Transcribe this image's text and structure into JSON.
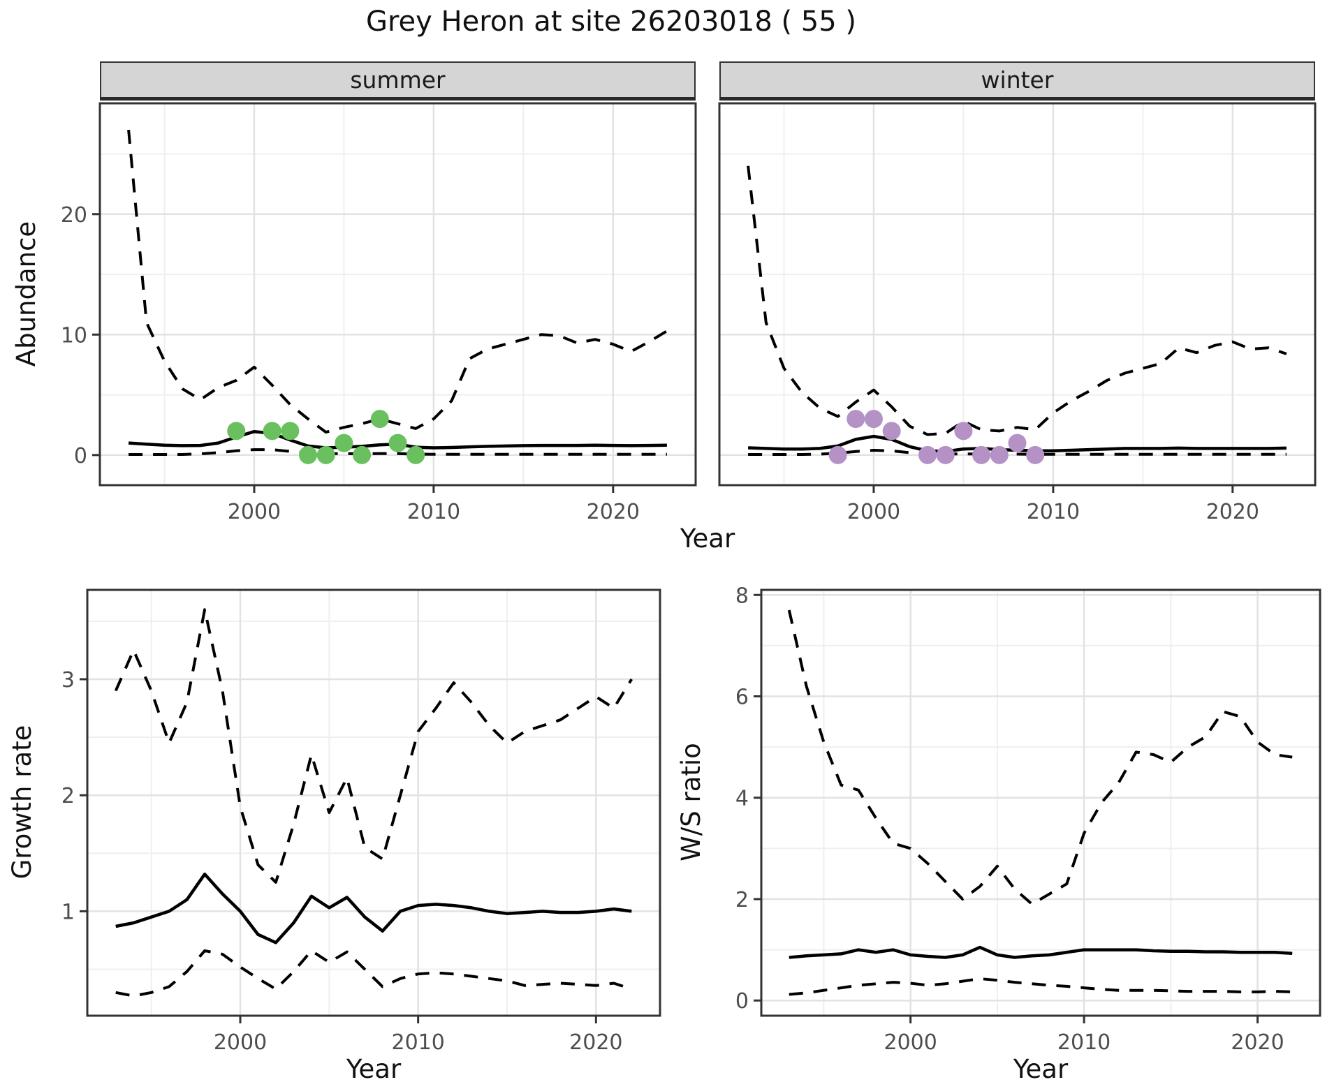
{
  "title": "Grey Heron at site 26203018 ( 55 )",
  "facets": {
    "summer": "summer",
    "winter": "winter"
  },
  "axis_labels": {
    "abundance": "Abundance",
    "year_top": "Year",
    "growth": "Growth rate",
    "ws": "W/S ratio",
    "year_growth": "Year",
    "year_ws": "Year"
  },
  "colors": {
    "summer_points": "#6abf5f",
    "winter_points": "#b592c6",
    "line": "#000000",
    "grid_major": "#e2e2e2",
    "grid_minor": "#efefef",
    "panel_border": "#333333",
    "tick_text": "#4d4d4d"
  },
  "chart_data": [
    {
      "name": "summer-abundance",
      "type": "line",
      "facet": "summer",
      "title": "Grey Heron at site 26203018 ( 55 )",
      "xlabel": "Year",
      "ylabel": "Abundance",
      "xlim": [
        1991.4,
        2024.6
      ],
      "ylim": [
        -2.5,
        29.2
      ],
      "xticks": [
        2000,
        2010,
        2020
      ],
      "xminor": [
        1995,
        2005,
        2015
      ],
      "yticks": [
        0,
        10,
        20
      ],
      "yminor": [
        5,
        15,
        25
      ],
      "x": [
        1993,
        1994,
        1995,
        1996,
        1997,
        1998,
        1999,
        2000,
        2001,
        2002,
        2003,
        2004,
        2005,
        2006,
        2007,
        2008,
        2009,
        2010,
        2011,
        2012,
        2013,
        2014,
        2015,
        2016,
        2017,
        2018,
        2019,
        2020,
        2021,
        2022,
        2023
      ],
      "series": [
        {
          "name": "upper_ci",
          "style": "dashed",
          "values": [
            27.0,
            11.0,
            7.8,
            5.5,
            4.6,
            5.6,
            6.2,
            7.3,
            5.8,
            4.2,
            3.0,
            1.9,
            2.3,
            2.6,
            3.0,
            2.6,
            2.2,
            3.0,
            4.5,
            8.0,
            8.8,
            9.2,
            9.6,
            10.0,
            9.9,
            9.3,
            9.6,
            9.2,
            8.6,
            9.4,
            10.3
          ]
        },
        {
          "name": "median",
          "style": "solid",
          "values": [
            1.0,
            0.9,
            0.82,
            0.78,
            0.8,
            1.0,
            1.5,
            1.95,
            1.8,
            1.25,
            0.75,
            0.6,
            0.65,
            0.72,
            0.85,
            0.9,
            0.65,
            0.6,
            0.63,
            0.68,
            0.72,
            0.75,
            0.78,
            0.8,
            0.8,
            0.8,
            0.82,
            0.8,
            0.78,
            0.8,
            0.82
          ]
        },
        {
          "name": "lower_ci",
          "style": "dashed",
          "values": [
            0.05,
            0.05,
            0.05,
            0.05,
            0.1,
            0.2,
            0.35,
            0.45,
            0.45,
            0.3,
            0.15,
            0.1,
            0.12,
            0.1,
            0.12,
            0.12,
            0.08,
            0.06,
            0.06,
            0.06,
            0.06,
            0.06,
            0.06,
            0.06,
            0.06,
            0.06,
            0.06,
            0.06,
            0.06,
            0.06,
            0.06
          ]
        }
      ],
      "points": {
        "name": "observed_counts",
        "color": "#6abf5f",
        "data": [
          [
            1999,
            2
          ],
          [
            2001,
            2
          ],
          [
            2002,
            2
          ],
          [
            2003,
            0
          ],
          [
            2004,
            0
          ],
          [
            2005,
            1
          ],
          [
            2006,
            0
          ],
          [
            2007,
            3
          ],
          [
            2008,
            1
          ],
          [
            2009,
            0
          ]
        ]
      }
    },
    {
      "name": "winter-abundance",
      "type": "line",
      "facet": "winter",
      "xlabel": "Year",
      "ylabel": "Abundance",
      "xlim": [
        1991.4,
        2024.6
      ],
      "ylim": [
        -2.5,
        29.2
      ],
      "xticks": [
        2000,
        2010,
        2020
      ],
      "xminor": [
        1995,
        2005,
        2015
      ],
      "yticks": [
        0,
        10,
        20
      ],
      "yminor": [
        5,
        15,
        25
      ],
      "x": [
        1993,
        1994,
        1995,
        1996,
        1997,
        1998,
        1999,
        2000,
        2001,
        2002,
        2003,
        2004,
        2005,
        2006,
        2007,
        2008,
        2009,
        2010,
        2011,
        2012,
        2013,
        2014,
        2015,
        2016,
        2017,
        2018,
        2019,
        2020,
        2021,
        2022,
        2023
      ],
      "series": [
        {
          "name": "upper_ci",
          "style": "dashed",
          "values": [
            24.0,
            11.0,
            7.2,
            5.2,
            3.9,
            3.2,
            4.4,
            5.4,
            4.0,
            2.4,
            1.7,
            1.8,
            2.8,
            2.1,
            2.0,
            2.3,
            2.1,
            3.5,
            4.5,
            5.3,
            6.2,
            6.8,
            7.2,
            7.6,
            8.9,
            8.5,
            9.1,
            9.4,
            8.8,
            8.9,
            8.4
          ]
        },
        {
          "name": "median",
          "style": "solid",
          "values": [
            0.6,
            0.55,
            0.5,
            0.5,
            0.55,
            0.75,
            1.3,
            1.55,
            1.3,
            0.7,
            0.35,
            0.3,
            0.5,
            0.55,
            0.45,
            0.4,
            0.35,
            0.35,
            0.4,
            0.45,
            0.5,
            0.55,
            0.55,
            0.55,
            0.58,
            0.55,
            0.55,
            0.55,
            0.55,
            0.55,
            0.58
          ]
        },
        {
          "name": "lower_ci",
          "style": "dashed",
          "values": [
            0.05,
            0.05,
            0.05,
            0.05,
            0.08,
            0.15,
            0.3,
            0.4,
            0.35,
            0.2,
            0.1,
            0.08,
            0.1,
            0.08,
            0.08,
            0.08,
            0.06,
            0.06,
            0.06,
            0.06,
            0.06,
            0.06,
            0.06,
            0.06,
            0.06,
            0.06,
            0.06,
            0.06,
            0.06,
            0.06,
            0.06
          ]
        }
      ],
      "points": {
        "name": "observed_counts",
        "color": "#b592c6",
        "data": [
          [
            1998,
            0
          ],
          [
            1999,
            3
          ],
          [
            2000,
            3
          ],
          [
            2001,
            2
          ],
          [
            2003,
            0
          ],
          [
            2004,
            0
          ],
          [
            2005,
            2
          ],
          [
            2006,
            0
          ],
          [
            2007,
            0
          ],
          [
            2008,
            1
          ],
          [
            2009,
            0
          ]
        ]
      }
    },
    {
      "name": "growth-rate",
      "type": "line",
      "xlabel": "Year",
      "ylabel": "Growth rate",
      "xlim": [
        1991.4,
        2023.6
      ],
      "ylim": [
        0.1,
        3.77
      ],
      "xticks": [
        2000,
        2010,
        2020
      ],
      "xminor": [
        1995,
        2005,
        2015
      ],
      "yticks": [
        1,
        2,
        3
      ],
      "yminor": [
        0.5,
        1.5,
        2.5,
        3.5
      ],
      "x": [
        1993,
        1994,
        1995,
        1996,
        1997,
        1998,
        1999,
        2000,
        2001,
        2002,
        2003,
        2004,
        2005,
        2006,
        2007,
        2008,
        2009,
        2010,
        2011,
        2012,
        2013,
        2014,
        2015,
        2016,
        2017,
        2018,
        2019,
        2020,
        2021,
        2022
      ],
      "series": [
        {
          "name": "upper_ci",
          "style": "dashed",
          "values": [
            2.9,
            3.25,
            2.9,
            2.45,
            2.8,
            3.6,
            2.9,
            1.9,
            1.4,
            1.25,
            1.75,
            2.35,
            1.85,
            2.15,
            1.55,
            1.45,
            2.0,
            2.55,
            2.75,
            2.97,
            2.8,
            2.6,
            2.45,
            2.55,
            2.6,
            2.65,
            2.75,
            2.85,
            2.75,
            3.0
          ]
        },
        {
          "name": "median",
          "style": "solid",
          "values": [
            0.87,
            0.9,
            0.95,
            1.0,
            1.1,
            1.32,
            1.15,
            1.0,
            0.8,
            0.73,
            0.9,
            1.13,
            1.03,
            1.12,
            0.95,
            0.83,
            1.0,
            1.05,
            1.06,
            1.05,
            1.03,
            1.0,
            0.98,
            0.99,
            1.0,
            0.99,
            0.99,
            1.0,
            1.02,
            1.0
          ]
        },
        {
          "name": "lower_ci",
          "style": "dashed",
          "values": [
            0.3,
            0.27,
            0.3,
            0.35,
            0.48,
            0.66,
            0.63,
            0.52,
            0.42,
            0.33,
            0.48,
            0.66,
            0.56,
            0.65,
            0.5,
            0.35,
            0.42,
            0.46,
            0.47,
            0.46,
            0.44,
            0.42,
            0.4,
            0.36,
            0.37,
            0.38,
            0.37,
            0.36,
            0.38,
            0.33
          ]
        }
      ]
    },
    {
      "name": "ws-ratio",
      "type": "line",
      "xlabel": "Year",
      "ylabel": "W/S ratio",
      "xlim": [
        1991.4,
        2023.6
      ],
      "ylim": [
        -0.3,
        8.1
      ],
      "xticks": [
        2000,
        2010,
        2020
      ],
      "xminor": [
        1995,
        2005,
        2015
      ],
      "yticks": [
        0,
        2,
        4,
        6,
        8
      ],
      "yminor": [
        1,
        3,
        5,
        7
      ],
      "x": [
        1993,
        1994,
        1995,
        1996,
        1997,
        1998,
        1999,
        2000,
        2001,
        2002,
        2003,
        2004,
        2005,
        2006,
        2007,
        2008,
        2009,
        2010,
        2011,
        2012,
        2013,
        2014,
        2015,
        2016,
        2017,
        2018,
        2019,
        2020,
        2021,
        2022
      ],
      "series": [
        {
          "name": "upper_ci",
          "style": "dashed",
          "values": [
            7.7,
            6.2,
            5.1,
            4.25,
            4.15,
            3.6,
            3.1,
            3.0,
            2.7,
            2.35,
            2.0,
            2.25,
            2.65,
            2.2,
            1.9,
            2.1,
            2.3,
            3.3,
            3.9,
            4.3,
            4.9,
            4.85,
            4.7,
            5.0,
            5.2,
            5.7,
            5.6,
            5.1,
            4.85,
            4.8
          ]
        },
        {
          "name": "median",
          "style": "solid",
          "values": [
            0.85,
            0.88,
            0.9,
            0.92,
            1.0,
            0.95,
            1.0,
            0.9,
            0.87,
            0.85,
            0.9,
            1.05,
            0.9,
            0.85,
            0.88,
            0.9,
            0.95,
            1.0,
            1.0,
            1.0,
            1.0,
            0.98,
            0.97,
            0.97,
            0.96,
            0.96,
            0.95,
            0.95,
            0.95,
            0.93
          ]
        },
        {
          "name": "lower_ci",
          "style": "dashed",
          "values": [
            0.12,
            0.15,
            0.2,
            0.25,
            0.3,
            0.33,
            0.36,
            0.34,
            0.3,
            0.33,
            0.38,
            0.43,
            0.4,
            0.36,
            0.33,
            0.3,
            0.28,
            0.25,
            0.22,
            0.2,
            0.2,
            0.2,
            0.19,
            0.18,
            0.18,
            0.18,
            0.17,
            0.17,
            0.18,
            0.17
          ]
        }
      ]
    }
  ]
}
